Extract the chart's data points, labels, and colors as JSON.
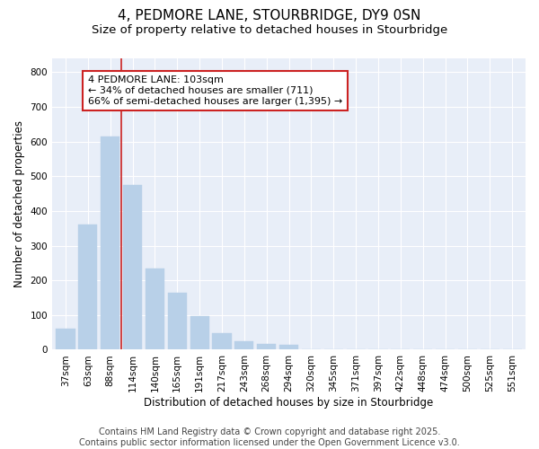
{
  "title1": "4, PEDMORE LANE, STOURBRIDGE, DY9 0SN",
  "title2": "Size of property relative to detached houses in Stourbridge",
  "xlabel": "Distribution of detached houses by size in Stourbridge",
  "ylabel": "Number of detached properties",
  "categories": [
    "37sqm",
    "63sqm",
    "88sqm",
    "114sqm",
    "140sqm",
    "165sqm",
    "191sqm",
    "217sqm",
    "243sqm",
    "268sqm",
    "294sqm",
    "320sqm",
    "345sqm",
    "371sqm",
    "397sqm",
    "422sqm",
    "448sqm",
    "474sqm",
    "500sqm",
    "525sqm",
    "551sqm"
  ],
  "values": [
    60,
    360,
    615,
    475,
    235,
    163,
    97,
    47,
    24,
    17,
    15,
    2,
    2,
    2,
    2,
    2,
    0,
    0,
    0,
    0,
    0
  ],
  "bar_color": "#b8d0e8",
  "bar_edge_color": "#b8d0e8",
  "vline_color": "#cc2222",
  "vline_index": 3,
  "annotation_text": "4 PEDMORE LANE: 103sqm\n← 34% of detached houses are smaller (711)\n66% of semi-detached houses are larger (1,395) →",
  "annotation_box_edge_color": "#cc2222",
  "annotation_box_fill": "#ffffff",
  "ylim": [
    0,
    840
  ],
  "yticks": [
    0,
    100,
    200,
    300,
    400,
    500,
    600,
    700,
    800
  ],
  "background_color": "#ffffff",
  "plot_bg_color": "#e8eef8",
  "grid_color": "#ffffff",
  "footer_text": "Contains HM Land Registry data © Crown copyright and database right 2025.\nContains public sector information licensed under the Open Government Licence v3.0.",
  "title_fontsize": 11,
  "subtitle_fontsize": 9.5,
  "axis_label_fontsize": 8.5,
  "tick_fontsize": 7.5,
  "annotation_fontsize": 8,
  "footer_fontsize": 7
}
